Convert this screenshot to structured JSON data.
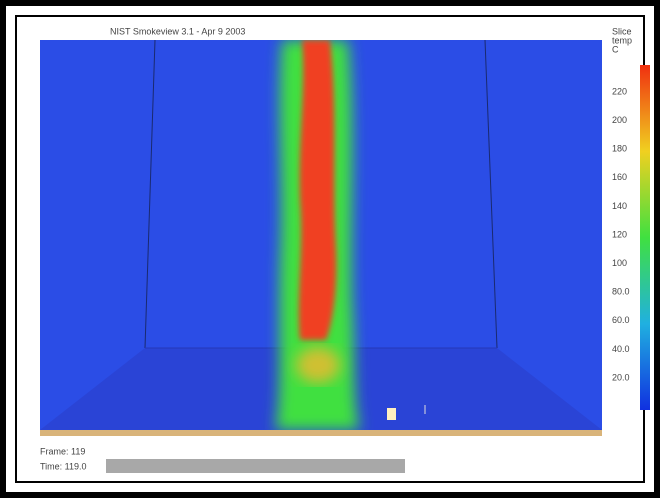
{
  "window": {
    "title": "NIST Smokeview 3.1 - Apr 9 2003"
  },
  "colorbar": {
    "title": [
      "Slice",
      "temp",
      "C"
    ],
    "labels": [
      "220",
      "200",
      "180",
      "160",
      "140",
      "120",
      "100",
      "80.0",
      "60.0",
      "40.0",
      "20.0"
    ]
  },
  "status": {
    "frame": "Frame: 119",
    "time": "Time: 119.0"
  }
}
